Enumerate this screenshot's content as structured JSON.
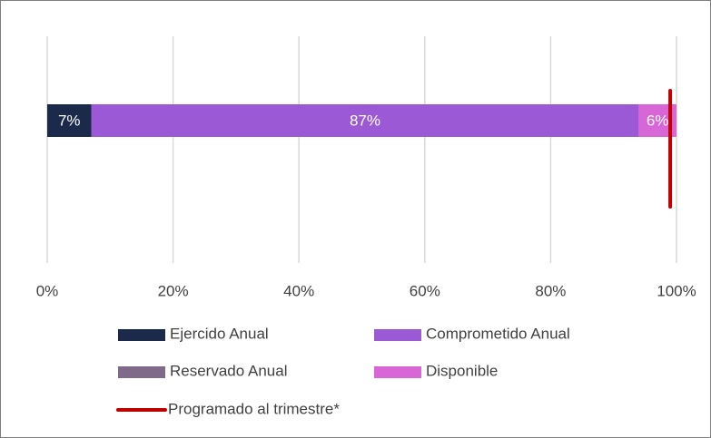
{
  "chart_data": {
    "type": "stacked_bar_horizontal",
    "categories": [
      null
    ],
    "series": [
      {
        "name": "Ejercido Anual",
        "color": "#1b2a4a",
        "values": [
          7
        ],
        "value_labels": [
          "7%"
        ]
      },
      {
        "name": "Comprometido Anual",
        "color": "#9b59d6",
        "values": [
          87
        ],
        "value_labels": [
          "87%"
        ]
      },
      {
        "name": "Reservado Anual",
        "color": "#7f6a8a",
        "values": [
          0
        ]
      },
      {
        "name": "Disponible",
        "color": "#d966d6",
        "values": [
          6
        ],
        "value_labels": [
          "6%"
        ]
      }
    ],
    "reference": {
      "name": "Programado al trimestre*",
      "value": 99,
      "color": "#c00000"
    },
    "xlim": [
      0,
      100
    ],
    "xticks": [
      {
        "value": 0,
        "label": "0%"
      },
      {
        "value": 20,
        "label": "20%"
      },
      {
        "value": 40,
        "label": "40%"
      },
      {
        "value": 60,
        "label": "60%"
      },
      {
        "value": 80,
        "label": "80%"
      },
      {
        "value": 100,
        "label": "100%"
      }
    ],
    "grid": true
  }
}
